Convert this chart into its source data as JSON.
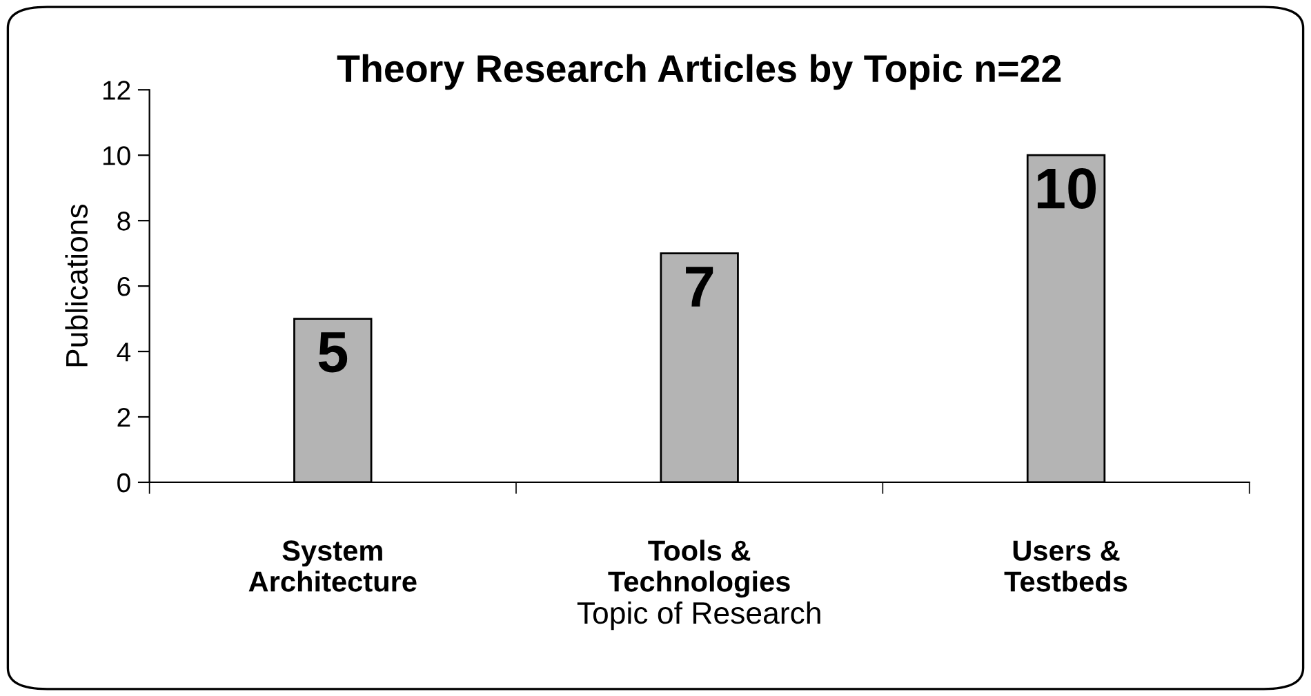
{
  "chart_data": {
    "type": "bar",
    "title": "Theory Research Articles by Topic n=22",
    "xlabel": "Topic of Research",
    "ylabel": "Publications",
    "categories": [
      "System\nArchitecture",
      "Tools &\nTechnologies",
      "Users &\nTestbeds"
    ],
    "values": [
      5,
      7,
      10
    ],
    "color": "#b4b4b4",
    "data_labels": true,
    "ylim": [
      0,
      12
    ],
    "yticks": [
      0,
      2,
      4,
      6,
      8,
      10,
      12
    ],
    "grid": false,
    "legend": false
  }
}
